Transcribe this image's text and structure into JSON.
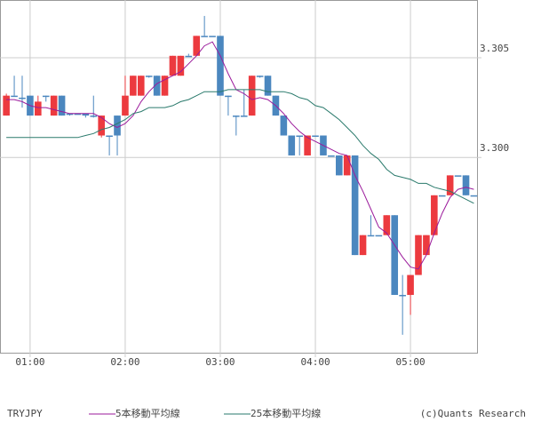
{
  "chart_data": {
    "type": "candlestick",
    "title": "TRYJPY",
    "credit": "(c)Quants Research",
    "x": [
      45,
      50,
      55,
      60,
      65,
      70,
      75,
      80,
      85,
      90,
      95,
      100,
      105,
      110,
      115,
      120,
      125,
      130,
      135,
      140,
      145,
      150,
      155,
      160,
      165,
      170,
      175,
      180,
      185,
      190,
      195,
      200,
      205,
      210,
      215,
      220,
      225,
      230,
      235,
      240,
      245,
      250,
      255,
      260,
      265,
      270,
      275,
      280,
      285,
      290,
      295,
      300,
      305,
      310,
      315,
      320,
      325,
      330,
      335,
      340
    ],
    "open": [
      3.3021,
      3.3031,
      3.303,
      3.3031,
      3.3021,
      3.3031,
      3.3021,
      3.3031,
      3.3022,
      3.3022,
      3.3022,
      3.3021,
      3.3011,
      3.3011,
      3.3021,
      3.3021,
      3.3031,
      3.3031,
      3.3041,
      3.3041,
      3.3031,
      3.3041,
      3.3041,
      3.3051,
      3.3051,
      3.3061,
      3.3061,
      3.3061,
      3.3031,
      3.3021,
      3.3021,
      3.3021,
      3.3041,
      3.3041,
      3.3031,
      3.3021,
      3.3011,
      3.3011,
      3.3001,
      3.3011,
      3.3011,
      3.3001,
      3.3001,
      3.2991,
      3.3001,
      3.2951,
      3.2961,
      3.2961,
      3.2961,
      3.2971,
      3.2931,
      3.2931,
      3.2941,
      3.2951,
      3.2961,
      3.2981,
      3.2981,
      3.2991,
      3.2991,
      3.2981
    ],
    "high": [
      3.3032,
      3.3041,
      3.3041,
      3.3031,
      3.3031,
      3.3031,
      3.3031,
      3.3031,
      3.3022,
      3.3022,
      3.3022,
      3.3031,
      3.3021,
      3.3011,
      3.3021,
      3.3041,
      3.3041,
      3.3041,
      3.3041,
      3.3041,
      3.3041,
      3.3051,
      3.3051,
      3.3052,
      3.3061,
      3.3071,
      3.3061,
      3.3061,
      3.3031,
      3.3021,
      3.3034,
      3.3041,
      3.3041,
      3.3041,
      3.3031,
      3.3021,
      3.3011,
      3.3011,
      3.3011,
      3.3011,
      3.3011,
      3.3001,
      3.3001,
      3.3001,
      3.3001,
      3.2961,
      3.2971,
      3.2961,
      3.2971,
      3.2971,
      3.2941,
      3.2941,
      3.2961,
      3.2961,
      3.2981,
      3.2981,
      3.2991,
      3.2991,
      3.2991,
      3.2981
    ],
    "low": [
      3.3021,
      3.3031,
      3.3025,
      3.3021,
      3.3021,
      3.3028,
      3.3021,
      3.3021,
      3.3021,
      3.3022,
      3.302,
      3.302,
      3.301,
      3.3001,
      3.3001,
      3.3021,
      3.3031,
      3.3031,
      3.304,
      3.3031,
      3.3031,
      3.3041,
      3.3041,
      3.3051,
      3.3051,
      3.3061,
      3.3061,
      3.3031,
      3.3021,
      3.3011,
      3.3021,
      3.3021,
      3.304,
      3.3031,
      3.3021,
      3.3011,
      3.3001,
      3.3001,
      3.3001,
      3.3011,
      3.3001,
      3.3001,
      3.2991,
      3.2991,
      3.2951,
      3.2951,
      3.2961,
      3.2961,
      3.2961,
      3.2931,
      3.2911,
      3.2921,
      3.2941,
      3.2951,
      3.2961,
      3.2981,
      3.2981,
      3.2991,
      3.2981,
      3.2981
    ],
    "close": [
      3.3031,
      3.3031,
      3.303,
      3.3021,
      3.3028,
      3.3031,
      3.3031,
      3.3021,
      3.3022,
      3.3022,
      3.3021,
      3.3021,
      3.3021,
      3.3011,
      3.3011,
      3.3031,
      3.3041,
      3.3041,
      3.3041,
      3.3031,
      3.3041,
      3.3051,
      3.3051,
      3.3051,
      3.3061,
      3.3061,
      3.3061,
      3.3031,
      3.3031,
      3.3021,
      3.3021,
      3.3041,
      3.3041,
      3.3031,
      3.3021,
      3.3011,
      3.3001,
      3.3011,
      3.3011,
      3.3011,
      3.3001,
      3.3001,
      3.2991,
      3.3001,
      3.2951,
      3.2961,
      3.2961,
      3.2961,
      3.2971,
      3.2931,
      3.2931,
      3.2941,
      3.2961,
      3.2961,
      3.2981,
      3.2981,
      3.2991,
      3.2991,
      3.2981,
      3.2981
    ],
    "up_color": "#ec3a3f",
    "down_color": "#4b87bf",
    "series": [
      {
        "name": "5本移動平均線",
        "color": "#9b1a9b",
        "values": [
          3.3029,
          3.3029,
          3.3028,
          3.3026,
          3.3025,
          3.3025,
          3.3024,
          3.3023,
          3.3022,
          3.3022,
          3.3022,
          3.3022,
          3.302,
          3.3017,
          3.3015,
          3.3017,
          3.3021,
          3.3028,
          3.3033,
          3.3037,
          3.3039,
          3.3041,
          3.3043,
          3.3047,
          3.3051,
          3.3056,
          3.3058,
          3.3051,
          3.3042,
          3.3034,
          3.3032,
          3.3029,
          3.303,
          3.3029,
          3.3026,
          3.3022,
          3.3017,
          3.3013,
          3.301,
          3.3008,
          3.3006,
          3.3004,
          3.3002,
          3.3001,
          3.2991,
          3.2983,
          3.2974,
          3.2965,
          3.2962,
          3.2956,
          3.295,
          3.2945,
          3.2944,
          3.2951,
          3.2962,
          3.2972,
          3.298,
          3.2984,
          3.2985,
          3.2984
        ]
      },
      {
        "name": "25本移動平均線",
        "color": "#2a7a6c",
        "values": [
          3.301,
          3.301,
          3.301,
          3.301,
          3.301,
          3.301,
          3.301,
          3.301,
          3.301,
          3.301,
          3.3011,
          3.3012,
          3.3014,
          3.3015,
          3.3017,
          3.3019,
          3.3022,
          3.3023,
          3.3025,
          3.3025,
          3.3025,
          3.3026,
          3.3028,
          3.3029,
          3.3031,
          3.3033,
          3.3033,
          3.3033,
          3.3034,
          3.3034,
          3.3034,
          3.3034,
          3.3034,
          3.3033,
          3.3033,
          3.3033,
          3.3032,
          3.303,
          3.3029,
          3.3026,
          3.3025,
          3.3022,
          3.3019,
          3.3015,
          3.3011,
          3.3006,
          3.3002,
          3.2999,
          3.2994,
          3.2991,
          3.299,
          3.2989,
          3.2987,
          3.2987,
          3.2985,
          3.2984,
          3.2983,
          3.2981,
          3.2979,
          3.2977
        ]
      }
    ],
    "xlim": [
      41,
      342
    ],
    "xticks": [
      {
        "value": 60,
        "label": "01:00"
      },
      {
        "value": 120,
        "label": "02:00"
      },
      {
        "value": 180,
        "label": "03:00"
      },
      {
        "value": 240,
        "label": "04:00"
      },
      {
        "value": 300,
        "label": "05:00"
      }
    ],
    "ylim": [
      3.2902,
      3.3079
    ],
    "yticks": [
      {
        "value": 3.3,
        "label": "3.300"
      },
      3.305
    ],
    "grid": true
  }
}
